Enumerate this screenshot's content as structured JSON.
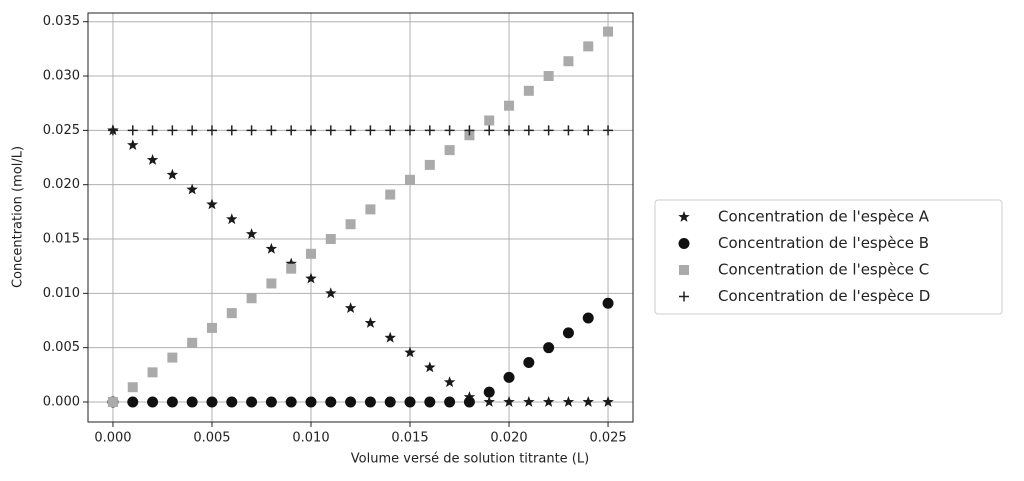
{
  "chart_data": {
    "type": "scatter",
    "xlabel": "Volume versé de solution titrante (L)",
    "ylabel": "Concentration (mol/L)",
    "x": [
      0,
      0.001,
      0.002,
      0.003,
      0.004,
      0.005,
      0.006,
      0.007,
      0.008,
      0.009,
      0.01,
      0.011,
      0.012,
      0.013,
      0.014,
      0.015,
      0.016,
      0.017,
      0.018,
      0.019,
      0.02,
      0.021,
      0.022,
      0.023,
      0.024,
      0.025
    ],
    "series": [
      {
        "name": "Concentration de l'espèce A",
        "color": "#1a1a1a",
        "marker": "star",
        "values": [
          0.025,
          0.02364,
          0.02227,
          0.02091,
          0.01955,
          0.01818,
          0.01682,
          0.01545,
          0.01409,
          0.01273,
          0.01136,
          0.01,
          0.00864,
          0.00727,
          0.00591,
          0.00455,
          0.00318,
          0.00182,
          0.00045,
          0,
          0,
          0,
          0,
          0,
          0,
          0
        ]
      },
      {
        "name": "Concentration de l'espèce B",
        "color": "#111111",
        "marker": "circle",
        "values": [
          0,
          0,
          0,
          0,
          0,
          0,
          0,
          0,
          0,
          0,
          0,
          0,
          0,
          0,
          0,
          0,
          0,
          0,
          0,
          0.00091,
          0.00227,
          0.00364,
          0.005,
          0.00636,
          0.00773,
          0.00909
        ]
      },
      {
        "name": "Concentration de l'espèce C",
        "color": "#aaaaaa",
        "marker": "square",
        "values": [
          0,
          0.00136,
          0.00273,
          0.00409,
          0.00545,
          0.00682,
          0.00818,
          0.00955,
          0.01091,
          0.01227,
          0.01364,
          0.015,
          0.01636,
          0.01773,
          0.01909,
          0.02045,
          0.02182,
          0.02318,
          0.02455,
          0.02591,
          0.02727,
          0.02864,
          0.03,
          0.03136,
          0.03273,
          0.03409
        ]
      },
      {
        "name": "Concentration de l'espèce D",
        "color": "#222222",
        "marker": "plus",
        "values": [
          0.025,
          0.025,
          0.025,
          0.025,
          0.025,
          0.025,
          0.025,
          0.025,
          0.025,
          0.025,
          0.025,
          0.025,
          0.025,
          0.025,
          0.025,
          0.025,
          0.025,
          0.025,
          0.025,
          0.025,
          0.025,
          0.025,
          0.025,
          0.025,
          0.025,
          0.025
        ]
      }
    ],
    "xlim": [
      -0.00126,
      0.02626
    ],
    "ylim": [
      -0.00184,
      0.0358
    ],
    "xticks": [
      {
        "value": 0,
        "label": "0.000"
      },
      {
        "value": 0.005,
        "label": "0.005"
      },
      {
        "value": 0.01,
        "label": "0.010"
      },
      {
        "value": 0.015,
        "label": "0.015"
      },
      {
        "value": 0.02,
        "label": "0.020"
      },
      {
        "value": 0.025,
        "label": "0.025"
      }
    ],
    "yticks": [
      {
        "value": 0,
        "label": "0.000"
      },
      {
        "value": 0.005,
        "label": "0.005"
      },
      {
        "value": 0.01,
        "label": "0.010"
      },
      {
        "value": 0.015,
        "label": "0.015"
      },
      {
        "value": 0.02,
        "label": "0.020"
      },
      {
        "value": 0.025,
        "label": "0.025"
      },
      {
        "value": 0.03,
        "label": "0.030"
      },
      {
        "value": 0.035,
        "label": "0.035"
      }
    ],
    "grid": true,
    "legend": "outside-right"
  }
}
